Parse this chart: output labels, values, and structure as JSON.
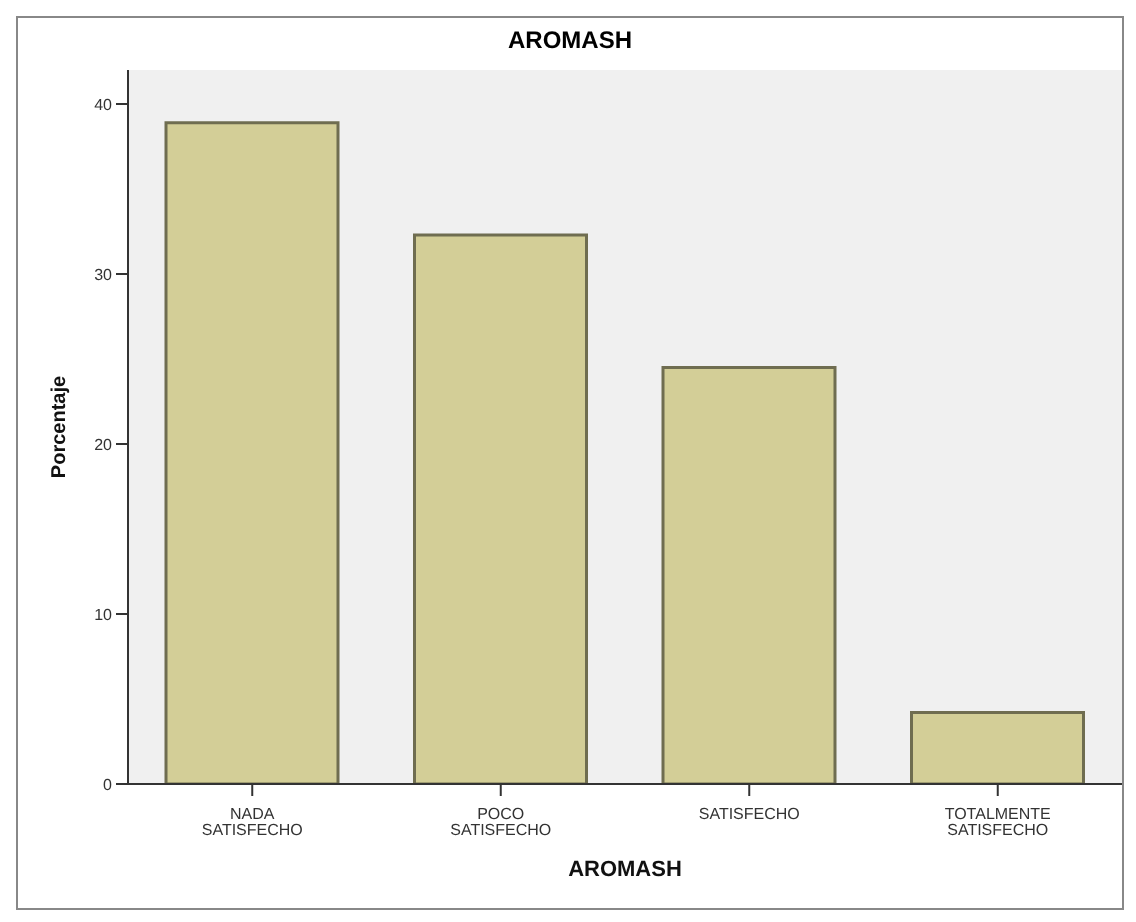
{
  "chart_data": {
    "type": "bar",
    "title": "AROMASH",
    "xlabel": "AROMASH",
    "ylabel": "Porcentaje",
    "categories": [
      "NADA SATISFECHO",
      "POCO SATISFECHO",
      "SATISFECHO",
      "TOTALMENTE SATISFECHO"
    ],
    "values": [
      38.9,
      32.3,
      24.5,
      4.2
    ],
    "color": "#d3ce97",
    "ylim": [
      0,
      42
    ],
    "yticks": [
      0,
      10,
      20,
      30,
      40
    ],
    "grid": false
  }
}
